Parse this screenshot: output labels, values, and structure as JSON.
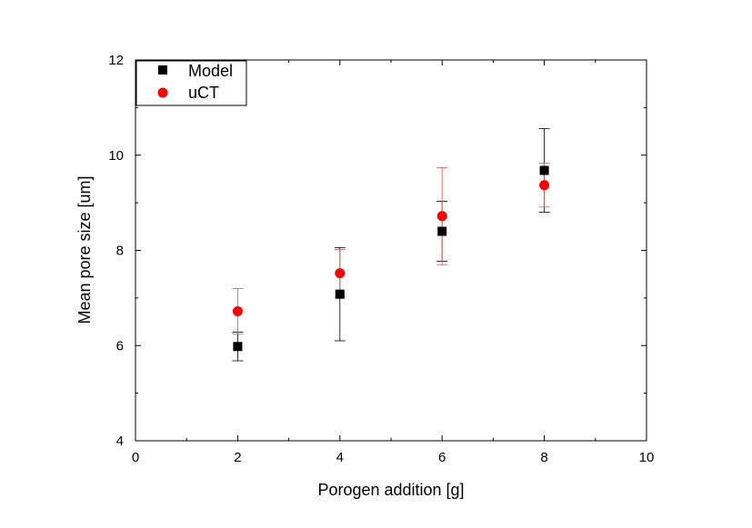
{
  "chart_data": {
    "type": "scatter",
    "xlabel": "Porogen addition [g]",
    "ylabel": "Mean pore size [um]",
    "xlim": [
      0,
      10
    ],
    "ylim": [
      4,
      12
    ],
    "xticks": [
      "0",
      "2",
      "4",
      "6",
      "8",
      "10"
    ],
    "yticks": [
      "4",
      "6",
      "8",
      "10",
      "12"
    ],
    "grid": false,
    "legend_position": "top-left",
    "series": [
      {
        "name": "Model",
        "marker": "square",
        "color": "#000000",
        "errorbar_color": "#000000",
        "points": [
          {
            "x": 2,
            "y": 5.98,
            "err_low": 0.3,
            "err_high": 0.3
          },
          {
            "x": 4,
            "y": 7.08,
            "err_low": 0.98,
            "err_high": 0.98
          },
          {
            "x": 6,
            "y": 8.4,
            "err_low": 0.63,
            "err_high": 0.63
          },
          {
            "x": 8,
            "y": 9.68,
            "err_low": 0.88,
            "err_high": 0.88
          }
        ]
      },
      {
        "name": "uCT",
        "marker": "circle",
        "color": "#ff0000",
        "errorbar_color": "#e05050",
        "points": [
          {
            "x": 2,
            "y": 6.72,
            "err_low": 0.48,
            "err_high": 0.48
          },
          {
            "x": 4,
            "y": 7.52,
            "err_low": 0.5,
            "err_high": 0.5
          },
          {
            "x": 6,
            "y": 8.72,
            "err_low": 1.02,
            "err_high": 1.02
          },
          {
            "x": 8,
            "y": 9.37,
            "err_low": 0.46,
            "err_high": 0.46
          }
        ]
      }
    ]
  }
}
